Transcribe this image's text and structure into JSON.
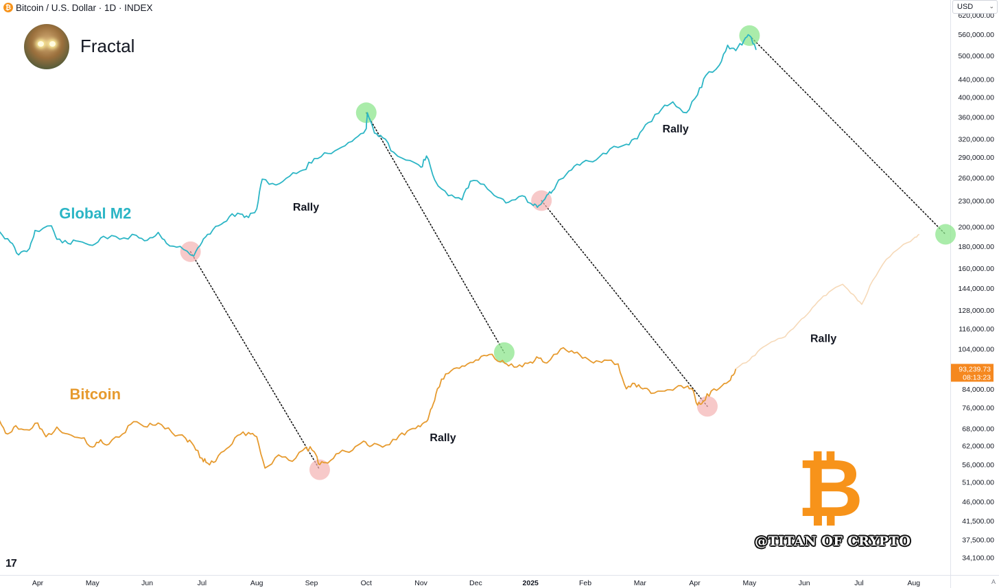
{
  "header": {
    "symbol_title": "Bitcoin / U.S. Dollar · 1D · INDEX",
    "coin_glyph": "₿"
  },
  "author": {
    "name": "Fractal",
    "avatar_icon": "avatar-portrait-icon"
  },
  "currency_selector": {
    "label": "USD",
    "chevron": "⌄"
  },
  "watermark": {
    "handle": "@TITAN OF CRYPTO",
    "logo_glyph": "₿",
    "logo_color": "#f7931a"
  },
  "footer": {
    "logo_text": "17",
    "auto_label": "A"
  },
  "colors": {
    "m2": "#2bb5c5",
    "bitcoin": "#e69a2e",
    "btc_projection": "#f6d9b8",
    "peak": "#8ee58e",
    "trough": "#f4b2b2",
    "price_label_bg": "#f5881f"
  },
  "chart_data": {
    "type": "line",
    "scale": "log",
    "ylim": [
      31500,
      625000
    ],
    "y_ticks": [
      {
        "v": 34100,
        "l": "34,100.00"
      },
      {
        "v": 37500,
        "l": "37,500.00"
      },
      {
        "v": 41500,
        "l": "41,500.00"
      },
      {
        "v": 46000,
        "l": "46,000.00"
      },
      {
        "v": 51000,
        "l": "51,000.00"
      },
      {
        "v": 56000,
        "l": "56,000.00"
      },
      {
        "v": 62000,
        "l": "62,000.00"
      },
      {
        "v": 68000,
        "l": "68,000.00"
      },
      {
        "v": 76000,
        "l": "76,000.00"
      },
      {
        "v": 84000,
        "l": "84,000.00"
      },
      {
        "v": 104000,
        "l": "104,000.00"
      },
      {
        "v": 116000,
        "l": "116,000.00"
      },
      {
        "v": 128000,
        "l": "128,000.00"
      },
      {
        "v": 144000,
        "l": "144,000.00"
      },
      {
        "v": 160000,
        "l": "160,000.00"
      },
      {
        "v": 180000,
        "l": "180,000.00"
      },
      {
        "v": 200000,
        "l": "200,000.00"
      },
      {
        "v": 230000,
        "l": "230,000.00"
      },
      {
        "v": 260000,
        "l": "260,000.00"
      },
      {
        "v": 290000,
        "l": "290,000.00"
      },
      {
        "v": 320000,
        "l": "320,000.00"
      },
      {
        "v": 360000,
        "l": "360,000.00"
      },
      {
        "v": 400000,
        "l": "400,000.00"
      },
      {
        "v": 440000,
        "l": "440,000.00"
      },
      {
        "v": 500000,
        "l": "500,000.00"
      },
      {
        "v": 560000,
        "l": "560,000.00"
      },
      {
        "v": 620000,
        "l": "620,000.00"
      }
    ],
    "x_ticks": [
      {
        "t": 0.0,
        "l": "Apr"
      },
      {
        "t": 1.0,
        "l": "May"
      },
      {
        "t": 2.0,
        "l": "Jun"
      },
      {
        "t": 3.0,
        "l": "Jul"
      },
      {
        "t": 4.0,
        "l": "Aug"
      },
      {
        "t": 5.0,
        "l": "Sep"
      },
      {
        "t": 6.0,
        "l": "Oct"
      },
      {
        "t": 7.0,
        "l": "Nov"
      },
      {
        "t": 8.0,
        "l": "Dec"
      },
      {
        "t": 9.0,
        "l": "2025",
        "bold": true
      },
      {
        "t": 10.0,
        "l": "Feb"
      },
      {
        "t": 11.0,
        "l": "Mar"
      },
      {
        "t": 12.0,
        "l": "Apr"
      },
      {
        "t": 13.0,
        "l": "May"
      },
      {
        "t": 14.0,
        "l": "Jun"
      },
      {
        "t": 15.0,
        "l": "Jul"
      },
      {
        "t": 16.0,
        "l": "Aug"
      }
    ],
    "series": [
      {
        "name": "Global M2",
        "color": "#2bb5c5",
        "points": [
          [
            -0.7,
            195000
          ],
          [
            -0.5,
            184000
          ],
          [
            -0.35,
            172000
          ],
          [
            -0.15,
            178000
          ],
          [
            -0.05,
            196000
          ],
          [
            0.25,
            201000
          ],
          [
            0.35,
            187000
          ],
          [
            0.55,
            183000
          ],
          [
            0.75,
            185000
          ],
          [
            1.0,
            181000
          ],
          [
            1.2,
            190000
          ],
          [
            1.5,
            187000
          ],
          [
            1.8,
            191000
          ],
          [
            2.0,
            186000
          ],
          [
            2.2,
            194000
          ],
          [
            2.35,
            183000
          ],
          [
            2.6,
            180000
          ],
          [
            2.85,
            171000
          ],
          [
            3.0,
            184000
          ],
          [
            3.1,
            192000
          ],
          [
            3.3,
            201000
          ],
          [
            3.5,
            211000
          ],
          [
            3.7,
            214000
          ],
          [
            3.85,
            210000
          ],
          [
            4.0,
            220000
          ],
          [
            4.1,
            258000
          ],
          [
            4.35,
            250000
          ],
          [
            4.6,
            262000
          ],
          [
            4.85,
            271000
          ],
          [
            5.05,
            288000
          ],
          [
            5.3,
            296000
          ],
          [
            5.55,
            306000
          ],
          [
            5.8,
            321000
          ],
          [
            6.0,
            338000
          ],
          [
            6.02,
            368000
          ],
          [
            6.15,
            330000
          ],
          [
            6.3,
            322000
          ],
          [
            6.5,
            298000
          ],
          [
            6.8,
            285000
          ],
          [
            7.0,
            275000
          ],
          [
            7.1,
            292000
          ],
          [
            7.25,
            257000
          ],
          [
            7.5,
            236000
          ],
          [
            7.75,
            231000
          ],
          [
            7.9,
            255000
          ],
          [
            8.15,
            251000
          ],
          [
            8.4,
            234000
          ],
          [
            8.6,
            228000
          ],
          [
            8.85,
            236000
          ],
          [
            9.05,
            224000
          ],
          [
            9.15,
            224000
          ],
          [
            9.3,
            237000
          ],
          [
            9.4,
            242000
          ],
          [
            9.55,
            258000
          ],
          [
            9.75,
            271000
          ],
          [
            9.95,
            282000
          ],
          [
            10.2,
            286000
          ],
          [
            10.45,
            303000
          ],
          [
            10.75,
            311000
          ],
          [
            10.95,
            320000
          ],
          [
            11.15,
            349000
          ],
          [
            11.4,
            376000
          ],
          [
            11.6,
            390000
          ],
          [
            11.85,
            368000
          ],
          [
            12.05,
            405000
          ],
          [
            12.2,
            449000
          ],
          [
            12.45,
            475000
          ],
          [
            12.6,
            528000
          ],
          [
            12.75,
            513000
          ],
          [
            12.9,
            542000
          ],
          [
            13.0,
            556000
          ],
          [
            13.12,
            515000
          ]
        ]
      },
      {
        "name": "Bitcoin",
        "color": "#e69a2e",
        "points": [
          [
            -0.7,
            71000
          ],
          [
            -0.55,
            66000
          ],
          [
            -0.4,
            69000
          ],
          [
            -0.2,
            67500
          ],
          [
            0.0,
            70000
          ],
          [
            0.15,
            65000
          ],
          [
            0.35,
            68500
          ],
          [
            0.55,
            66000
          ],
          [
            0.8,
            64500
          ],
          [
            1.0,
            61500
          ],
          [
            1.15,
            64000
          ],
          [
            1.3,
            62500
          ],
          [
            1.55,
            66000
          ],
          [
            1.75,
            70500
          ],
          [
            2.0,
            68500
          ],
          [
            2.2,
            70000
          ],
          [
            2.45,
            66500
          ],
          [
            2.7,
            64500
          ],
          [
            2.85,
            62000
          ],
          [
            3.0,
            58000
          ],
          [
            3.1,
            56500
          ],
          [
            3.25,
            57000
          ],
          [
            3.45,
            61000
          ],
          [
            3.65,
            65500
          ],
          [
            3.85,
            66500
          ],
          [
            4.0,
            65000
          ],
          [
            4.15,
            55000
          ],
          [
            4.4,
            59000
          ],
          [
            4.65,
            57000
          ],
          [
            4.9,
            61500
          ],
          [
            5.05,
            60000
          ],
          [
            5.15,
            56000
          ],
          [
            5.3,
            56500
          ],
          [
            5.5,
            59500
          ],
          [
            5.75,
            60500
          ],
          [
            5.95,
            63500
          ],
          [
            6.1,
            62000
          ],
          [
            6.3,
            61500
          ],
          [
            6.55,
            64000
          ],
          [
            6.75,
            67000
          ],
          [
            6.95,
            69000
          ],
          [
            7.1,
            70500
          ],
          [
            7.2,
            76000
          ],
          [
            7.3,
            84000
          ],
          [
            7.45,
            91000
          ],
          [
            7.65,
            94000
          ],
          [
            7.85,
            96000
          ],
          [
            8.05,
            98000
          ],
          [
            8.25,
            101000
          ],
          [
            8.45,
            97000
          ],
          [
            8.6,
            95000
          ],
          [
            8.8,
            95500
          ],
          [
            9.0,
            97000
          ],
          [
            9.15,
            99000
          ],
          [
            9.3,
            96500
          ],
          [
            9.55,
            104000
          ],
          [
            9.75,
            103000
          ],
          [
            9.95,
            99000
          ],
          [
            10.15,
            96500
          ],
          [
            10.35,
            98000
          ],
          [
            10.6,
            96000
          ],
          [
            10.75,
            84000
          ],
          [
            10.9,
            86500
          ],
          [
            11.05,
            84000
          ],
          [
            11.2,
            82000
          ],
          [
            11.45,
            83000
          ],
          [
            11.65,
            84500
          ],
          [
            11.85,
            85000
          ],
          [
            11.95,
            84000
          ],
          [
            12.05,
            77000
          ],
          [
            12.15,
            78500
          ],
          [
            12.3,
            83000
          ],
          [
            12.5,
            85500
          ],
          [
            12.65,
            88000
          ],
          [
            12.75,
            93500
          ]
        ]
      },
      {
        "name": "Bitcoin projection",
        "color": "#f6d9b8",
        "points": [
          [
            12.75,
            93500
          ],
          [
            13.0,
            98000
          ],
          [
            13.2,
            104000
          ],
          [
            13.4,
            108000
          ],
          [
            13.65,
            111000
          ],
          [
            13.85,
            118000
          ],
          [
            14.05,
            125000
          ],
          [
            14.25,
            134000
          ],
          [
            14.45,
            141000
          ],
          [
            14.7,
            147000
          ],
          [
            14.9,
            139000
          ],
          [
            15.05,
            132000
          ],
          [
            15.25,
            150000
          ],
          [
            15.5,
            168000
          ],
          [
            15.75,
            179000
          ],
          [
            16.0,
            188000
          ],
          [
            16.1,
            192000
          ]
        ]
      }
    ],
    "peaks": [
      [
        6.0,
        368000
      ],
      [
        13.0,
        556000
      ],
      [
        8.52,
        102000
      ],
      [
        16.58,
        192000
      ]
    ],
    "troughs": [
      [
        2.79,
        175000
      ],
      [
        9.2,
        230000
      ],
      [
        5.15,
        54500
      ],
      [
        12.23,
        76500
      ]
    ],
    "dotted_links": [
      [
        [
          2.79,
          175000
        ],
        [
          5.15,
          54500
        ]
      ],
      [
        [
          6.0,
          368000
        ],
        [
          8.52,
          102000
        ]
      ],
      [
        [
          9.2,
          230000
        ],
        [
          12.23,
          76500
        ]
      ],
      [
        [
          13.0,
          556000
        ],
        [
          16.58,
          192000
        ]
      ]
    ],
    "annotations": [
      {
        "text": "Global M2",
        "t": 1.05,
        "v": 209000,
        "color": "#2bb5c5",
        "size": 22,
        "kind": "series-label"
      },
      {
        "text": "Bitcoin",
        "t": 1.05,
        "v": 79500,
        "color": "#e69a2e",
        "size": 22,
        "kind": "series-label"
      },
      {
        "text": "Rally",
        "t": 4.9,
        "v": 218000,
        "color": "#131722",
        "size": 16,
        "kind": "rally"
      },
      {
        "text": "Rally",
        "t": 7.4,
        "v": 63500,
        "color": "#131722",
        "size": 16,
        "kind": "rally"
      },
      {
        "text": "Rally",
        "t": 11.65,
        "v": 331000,
        "color": "#131722",
        "size": 16,
        "kind": "rally"
      },
      {
        "text": "Rally",
        "t": 14.35,
        "v": 108000,
        "color": "#131722",
        "size": 16,
        "kind": "rally"
      }
    ],
    "last_price": {
      "value": "93,239.73",
      "countdown": "08:13:23"
    }
  }
}
